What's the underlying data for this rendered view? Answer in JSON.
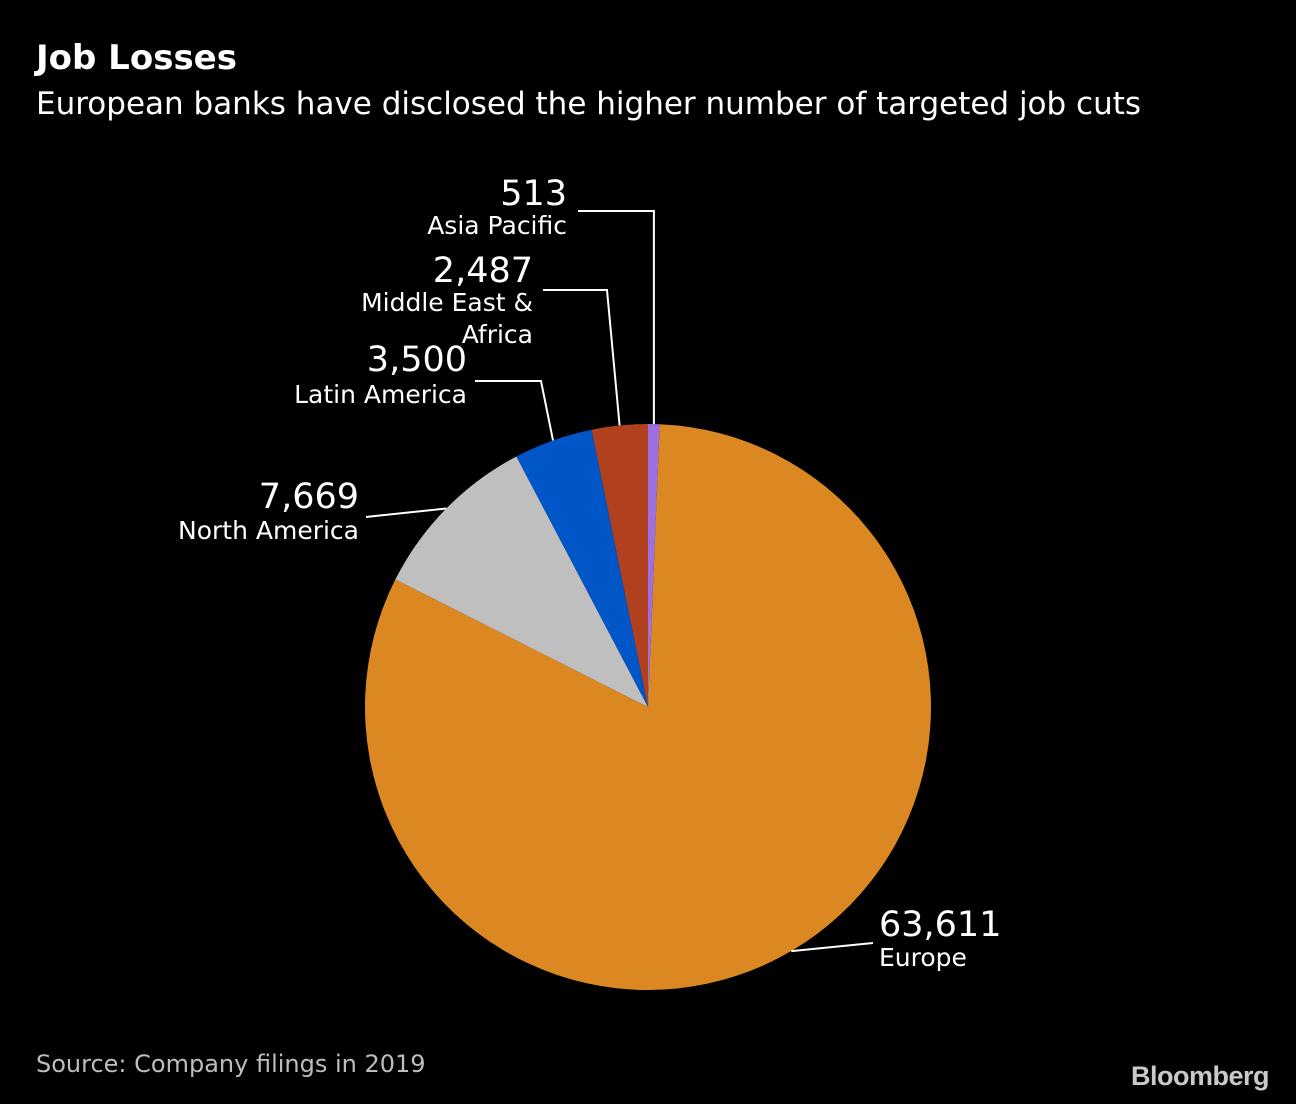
{
  "header": {
    "title": "Job Losses",
    "subtitle": "European banks have disclosed the higher number of targeted job cuts"
  },
  "footer": {
    "source": "Source: Company filings in 2019",
    "brand": "Bloomberg"
  },
  "chart_data": {
    "type": "pie",
    "title": "Job Losses",
    "subtitle": "European banks have disclosed the higher number of targeted job cuts",
    "slices": [
      {
        "label": "Asia Pacific",
        "value": 513,
        "value_label": "513",
        "color": "#9e6fe0"
      },
      {
        "label": "Europe",
        "value": 63611,
        "value_label": "63,611",
        "color": "#dc8822"
      },
      {
        "label": "North America",
        "value": 7669,
        "value_label": "7,669",
        "color": "#bfbfbf"
      },
      {
        "label": "Latin America",
        "value": 3500,
        "value_label": "3,500",
        "color": "#0056c7"
      },
      {
        "label": "Middle East & Africa",
        "value": 2487,
        "value_label": "2,487",
        "color": "#b0401e"
      }
    ],
    "legend": "none"
  }
}
